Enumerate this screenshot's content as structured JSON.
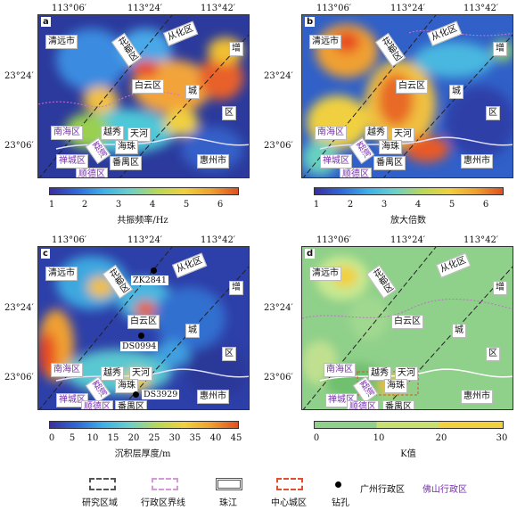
{
  "lon_labels": [
    "113°06′",
    "113°24′",
    "113°42′"
  ],
  "lat_labels": [
    "23°24′",
    "23°06′"
  ],
  "panels": [
    {
      "label": "a",
      "colorbar_title": "共振频率/Hz",
      "ticks": [
        "1",
        "2",
        "3",
        "4",
        "5",
        "6"
      ]
    },
    {
      "label": "b",
      "colorbar_title": "放大倍数",
      "ticks": [
        "1",
        "2",
        "3",
        "4",
        "5",
        "6"
      ]
    },
    {
      "label": "c",
      "colorbar_title": "沉积层厚度/m",
      "ticks": [
        "0",
        "5",
        "10",
        "15",
        "20",
        "25",
        "30",
        "35",
        "40",
        "45"
      ]
    },
    {
      "label": "d",
      "colorbar_title": "K值",
      "ticks": [
        "0",
        "10",
        "20",
        "30"
      ]
    }
  ],
  "places": {
    "qingyuan": "清远市",
    "conghua": "从化区",
    "huadu": "花都区",
    "zeng": "增",
    "cheng": "城",
    "qu": "区",
    "baiyun": "白云区",
    "nanhai": "南海区",
    "yuexiu": "越秀",
    "tianhe": "天河",
    "haizhu": "海珠",
    "liwan": "荔湾",
    "chancheng": "禅城区",
    "shunde": "顺德区",
    "panyu": "番禺区",
    "huizhou": "惠州市"
  },
  "drill_holes": [
    "ZK2841",
    "DS0994",
    "DS3929"
  ],
  "legend": {
    "study_area": "研究区域",
    "admin_boundary": "行政区界线",
    "pearl_river": "珠江",
    "central_district": "中心城区",
    "drill_hole": "钻孔",
    "guangzhou_admin": "广州行政区",
    "foshan_admin": "佛山行政区"
  },
  "colors": {
    "guangzhou": "#111111",
    "foshan": "#7a2fb0",
    "central": "#e0502a"
  }
}
